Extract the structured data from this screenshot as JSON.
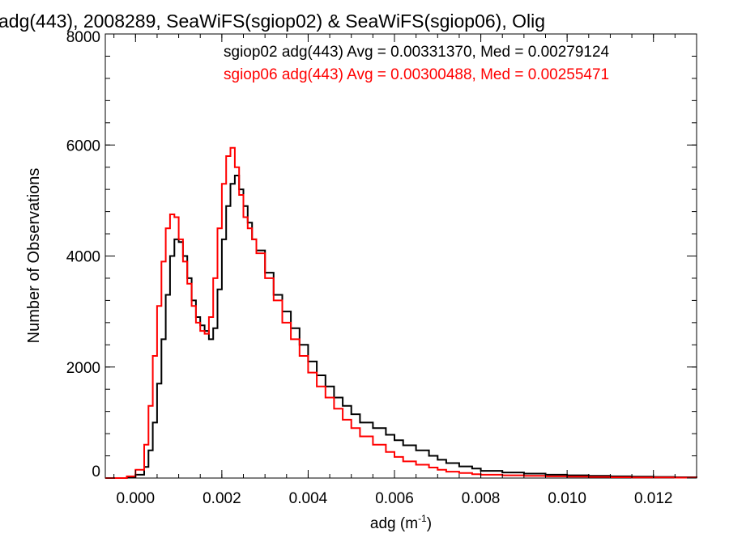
{
  "chart_data": {
    "type": "line",
    "title": "adg(443), 2008289, SeaWiFS(sgiop02) & SeaWiFS(sgiop06), Olig",
    "xlabel": "adg (m",
    "xlabel_sup": "-1",
    "xlabel_close": ")",
    "ylabel": "Number of Observations",
    "xlim": [
      -0.0007,
      0.013
    ],
    "ylim": [
      0,
      8000
    ],
    "x_ticks": [
      0.0,
      0.002,
      0.004,
      0.006,
      0.008,
      0.01,
      0.012
    ],
    "x_tick_labels": [
      "0.000",
      "0.002",
      "0.004",
      "0.006",
      "0.008",
      "0.010",
      "0.012"
    ],
    "y_ticks": [
      0,
      2000,
      4000,
      6000,
      8000
    ],
    "y_tick_labels": [
      "0",
      "2000",
      "4000",
      "6000",
      "8000"
    ],
    "legend_position": "top-right",
    "x": [
      -0.0007,
      -0.0004,
      -0.0002,
      0.0,
      0.0002,
      0.0003,
      0.0004,
      0.0005,
      0.0006,
      0.0007,
      0.0008,
      0.0009,
      0.001,
      0.0011,
      0.0012,
      0.0013,
      0.0014,
      0.0015,
      0.0016,
      0.0017,
      0.0018,
      0.0019,
      0.002,
      0.0021,
      0.0022,
      0.0023,
      0.0024,
      0.0025,
      0.0026,
      0.0027,
      0.0028,
      0.003,
      0.0032,
      0.0034,
      0.0036,
      0.0038,
      0.004,
      0.0042,
      0.0044,
      0.0046,
      0.0048,
      0.005,
      0.0052,
      0.0055,
      0.0058,
      0.006,
      0.0062,
      0.0065,
      0.0068,
      0.007,
      0.0072,
      0.0075,
      0.0078,
      0.008,
      0.0085,
      0.009,
      0.0095,
      0.01,
      0.0105,
      0.011,
      0.0115,
      0.012,
      0.0125,
      0.013
    ],
    "series": [
      {
        "name": "sgiop02 adg(443) Avg = 0.00331370, Med = 0.00279124",
        "color": "#000000",
        "values": [
          0,
          0,
          20,
          60,
          200,
          500,
          1000,
          1700,
          2500,
          3300,
          4000,
          4300,
          4250,
          4000,
          3600,
          3200,
          2900,
          2750,
          2650,
          2500,
          2700,
          3400,
          4300,
          4900,
          5300,
          5450,
          5200,
          4900,
          4600,
          4300,
          4100,
          3700,
          3300,
          3000,
          2700,
          2400,
          2100,
          1850,
          1650,
          1450,
          1300,
          1150,
          1000,
          900,
          780,
          680,
          590,
          500,
          400,
          330,
          270,
          210,
          170,
          130,
          100,
          80,
          60,
          50,
          40,
          30,
          25,
          20,
          15,
          10
        ]
      },
      {
        "name": "sgiop06 adg(443) Avg = 0.00300488, Med = 0.00255471",
        "color": "#ff0000",
        "values": [
          0,
          0,
          30,
          150,
          600,
          1300,
          2200,
          3100,
          3900,
          4500,
          4750,
          4700,
          4300,
          3900,
          3500,
          3100,
          2800,
          2650,
          2600,
          2900,
          3600,
          4500,
          5300,
          5800,
          5950,
          5600,
          5100,
          4700,
          4500,
          4300,
          4050,
          3600,
          3200,
          2800,
          2500,
          2200,
          1900,
          1650,
          1450,
          1250,
          1050,
          900,
          750,
          600,
          470,
          380,
          300,
          240,
          190,
          150,
          115,
          90,
          70,
          60,
          50,
          40,
          30,
          25,
          20,
          15,
          12,
          10,
          8,
          5
        ]
      }
    ]
  }
}
